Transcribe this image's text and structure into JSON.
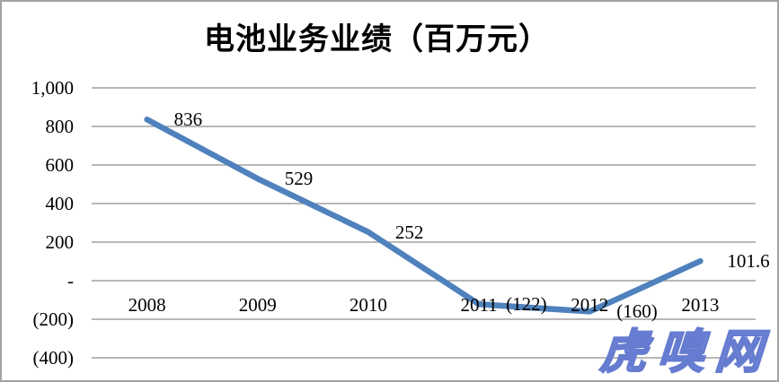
{
  "title": "电池业务业绩（百万元）",
  "watermark": {
    "text": "虎嗅网",
    "color": "#a7b4ec",
    "outline_color": "#667cd0"
  },
  "chart_data": {
    "type": "line",
    "title": "电池业务业绩（百万元）",
    "xlabel": "",
    "ylabel": "",
    "categories": [
      "2008",
      "2009",
      "2010",
      "2011",
      "2012",
      "2013"
    ],
    "series": [
      {
        "name": "电池业务业绩",
        "values": [
          836,
          529,
          252,
          -122,
          -160,
          101.6
        ],
        "color": "#4F81BD"
      }
    ],
    "data_labels": [
      "836",
      "529",
      "252",
      "(122)",
      "(160)",
      "101.6"
    ],
    "ylim": [
      -400,
      1000
    ],
    "y_tick_step": 200,
    "y_ticks": [
      1000,
      800,
      600,
      400,
      200,
      0,
      -200,
      -400
    ],
    "y_tick_labels": [
      "1,000",
      "800",
      "600",
      "400",
      "200",
      "-",
      "(200)",
      "(400)"
    ],
    "grid": true,
    "gridline_color": "#a0a0a0",
    "legend": "none",
    "number_format": "accounting (negatives in parentheses, zero as dash)"
  }
}
